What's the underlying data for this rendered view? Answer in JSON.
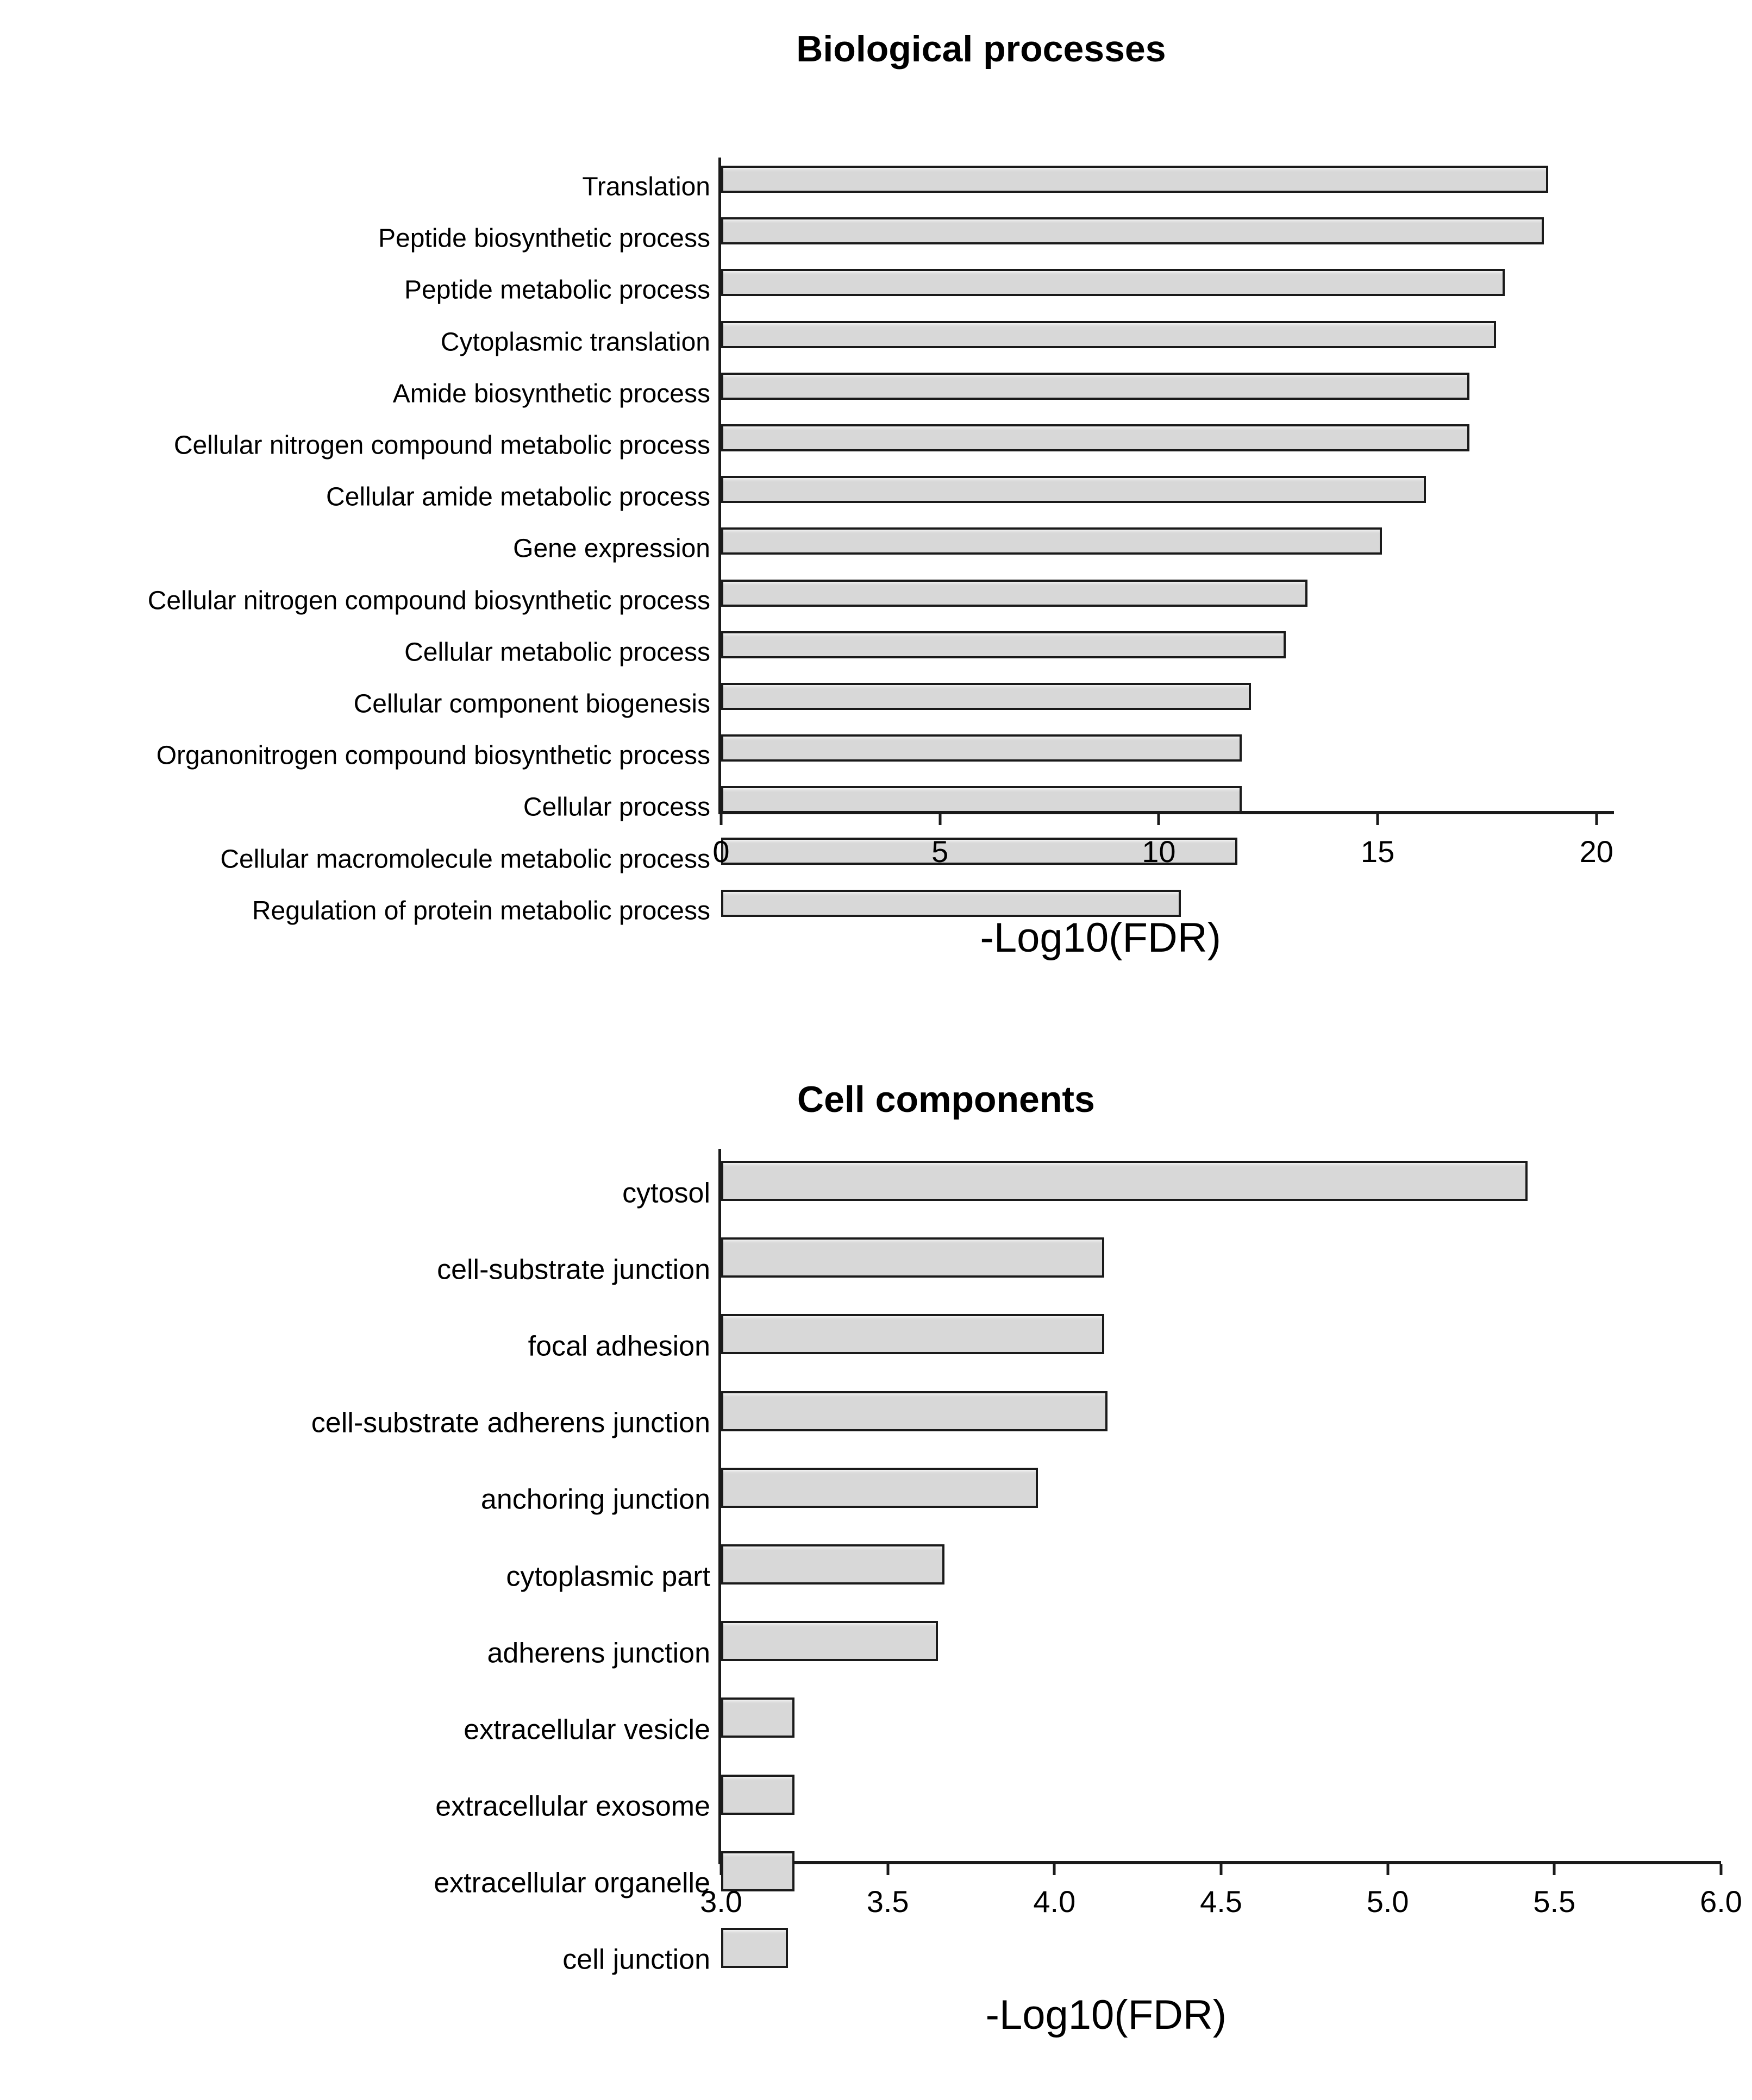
{
  "page": {
    "background": "#ffffff",
    "text_color": "#000000",
    "bar_fill": "#d8d8d8",
    "bar_border": "#1a1a1a"
  },
  "chart_data": [
    {
      "type": "bar",
      "orientation": "horizontal",
      "title": "Biological processes",
      "xlabel": "-Log10(FDR)",
      "grid": false,
      "legend": null,
      "xlim": [
        0,
        20.4
      ],
      "ticks": [
        0,
        5,
        10,
        15,
        20
      ],
      "tick_labels": [
        "0",
        "5",
        "10",
        "15",
        "20"
      ],
      "categories": [
        "Translation",
        "Peptide biosynthetic process",
        "Peptide metabolic process",
        "Cytoplasmic translation",
        "Amide biosynthetic process",
        "Cellular nitrogen compound metabolic process",
        "Cellular amide metabolic process",
        "Gene expression",
        "Cellular nitrogen compound biosynthetic process",
        "Cellular metabolic process",
        "Cellular component biogenesis",
        "Organonitrogen compound biosynthetic process",
        "Cellular process",
        "Cellular macromolecule metabolic process",
        "Regulation of protein metabolic process"
      ],
      "values": [
        18.9,
        18.8,
        17.9,
        17.7,
        17.1,
        17.1,
        16.1,
        15.1,
        13.4,
        12.9,
        12.1,
        11.9,
        11.9,
        11.8,
        10.5
      ],
      "bar_fill": "#d8d8d8",
      "bar_border": "#1a1a1a"
    },
    {
      "type": "bar",
      "orientation": "horizontal",
      "title": "Cell components",
      "xlabel": "-Log10(FDR)",
      "grid": false,
      "legend": null,
      "xlim": [
        3.0,
        6.0
      ],
      "ticks": [
        3.0,
        3.5,
        4.0,
        4.5,
        5.0,
        5.5,
        6.0
      ],
      "tick_labels": [
        "3.0",
        "3.5",
        "4.0",
        "4.5",
        "5.0",
        "5.5",
        "6.0"
      ],
      "categories": [
        "cytosol",
        "cell-substrate junction",
        "focal adhesion",
        "cell-substrate adherens junction",
        "anchoring junction",
        "cytoplasmic part",
        "adherens junction",
        "extracellular vesicle",
        "extracellular exosome",
        "extracellular organelle",
        "cell junction"
      ],
      "values": [
        5.42,
        4.15,
        4.15,
        4.16,
        3.95,
        3.67,
        3.65,
        3.22,
        3.22,
        3.22,
        3.2
      ],
      "bar_fill": "#d8d8d8",
      "bar_border": "#1a1a1a"
    }
  ]
}
